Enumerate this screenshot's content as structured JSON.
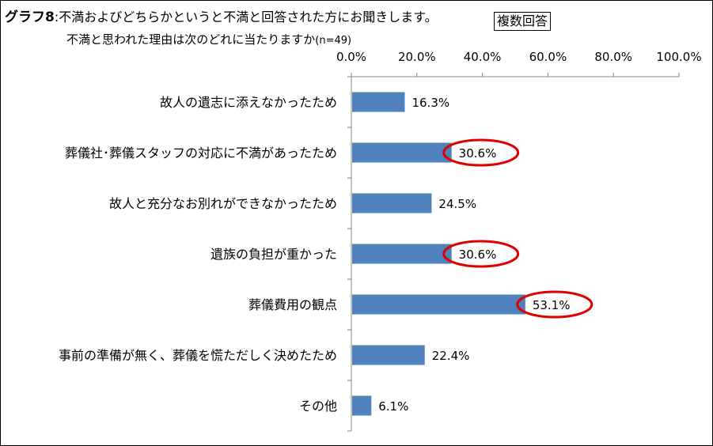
{
  "header": {
    "graph_label": "グラフ8",
    "question_line1": ":不満およびどちらかというと不満と回答された方にお聞きします。",
    "question_line2": "不満と思われた理由は次のどれに当たりますか",
    "sample_size": "(n=49)",
    "badge": "複数回答"
  },
  "chart_data": {
    "type": "bar",
    "orientation": "horizontal",
    "title": "",
    "xlabel": "",
    "ylabel": "",
    "xlim": [
      0,
      100
    ],
    "x_ticks": [
      "0.0%",
      "20.0%",
      "40.0%",
      "60.0%",
      "80.0%",
      "100.0%"
    ],
    "grid": false,
    "bar_color": "#4F81BD",
    "highlight_color": "#E00000",
    "categories": [
      "故人の遺志に添えなかったため",
      "葬儀社･葬儀スタッフの対応に不満があったため",
      "故人と充分なお別れができなかったため",
      "遺族の負担が重かった",
      "葬儀費用の観点",
      "事前の準備が無く、葬儀を慌ただしく決めたため",
      "その他"
    ],
    "values": [
      16.3,
      30.6,
      24.5,
      30.6,
      53.1,
      22.4,
      6.1
    ],
    "data_labels": [
      "16.3%",
      "30.6%",
      "24.5%",
      "30.6%",
      "53.1%",
      "22.4%",
      "6.1%"
    ],
    "highlighted": [
      false,
      true,
      false,
      true,
      true,
      false,
      false
    ]
  }
}
